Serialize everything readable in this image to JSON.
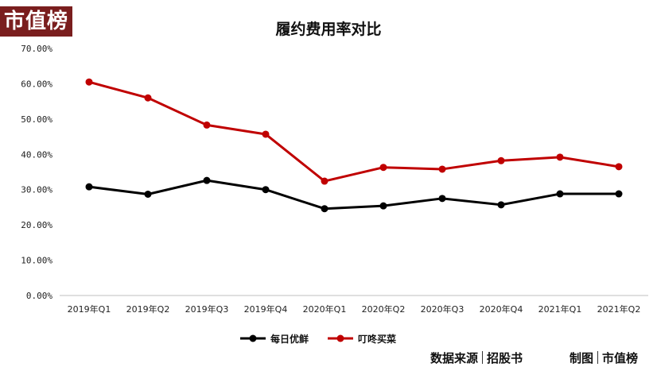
{
  "logo": {
    "text": "市值榜"
  },
  "chart_data": {
    "type": "line",
    "title": "履约费用率对比",
    "categories": [
      "2019年Q1",
      "2019年Q2",
      "2019年Q3",
      "2019年Q4",
      "2020年Q1",
      "2020年Q2",
      "2020年Q3",
      "2020年Q4",
      "2021年Q1",
      "2021年Q2"
    ],
    "series": [
      {
        "name": "每日优鲜",
        "color": "#000000",
        "values": [
          30.8,
          28.7,
          32.6,
          30.0,
          24.6,
          25.4,
          27.5,
          25.7,
          28.8,
          28.8
        ]
      },
      {
        "name": "叮咚买菜",
        "color": "#c00000",
        "values": [
          60.5,
          56.0,
          48.3,
          45.7,
          32.4,
          36.3,
          35.8,
          38.2,
          39.2,
          36.5
        ]
      }
    ],
    "yticks": [
      "0.00%",
      "10.00%",
      "20.00%",
      "30.00%",
      "40.00%",
      "50.00%",
      "60.00%",
      "70.00%"
    ],
    "ylim": [
      0,
      70
    ],
    "grid": false,
    "legend_position": "bottom"
  },
  "footer": {
    "source_label": "数据来源",
    "source_value": "招股书",
    "maker_label": "制图",
    "maker_value": "市值榜"
  }
}
